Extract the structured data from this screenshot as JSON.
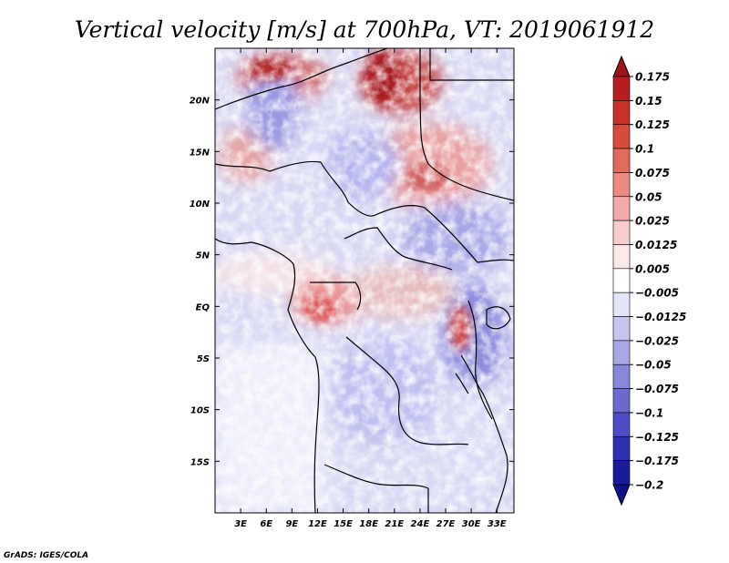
{
  "chart_data": {
    "type": "heatmap",
    "title": "Vertical velocity [m/s] at 700hPa, VT: 2019061912",
    "variable": "Vertical velocity",
    "units": "m/s",
    "level": "700hPa",
    "valid_time": "2019061912",
    "xlim": [
      0,
      35
    ],
    "ylim": [
      -20,
      25
    ],
    "x_ticks": [
      {
        "value": 3,
        "label": "3E"
      },
      {
        "value": 6,
        "label": "6E"
      },
      {
        "value": 9,
        "label": "9E"
      },
      {
        "value": 12,
        "label": "12E"
      },
      {
        "value": 15,
        "label": "15E"
      },
      {
        "value": 18,
        "label": "18E"
      },
      {
        "value": 21,
        "label": "21E"
      },
      {
        "value": 24,
        "label": "24E"
      },
      {
        "value": 27,
        "label": "27E"
      },
      {
        "value": 30,
        "label": "30E"
      },
      {
        "value": 33,
        "label": "33E"
      }
    ],
    "y_ticks": [
      {
        "value": 20,
        "label": "20N"
      },
      {
        "value": 15,
        "label": "15N"
      },
      {
        "value": 10,
        "label": "10N"
      },
      {
        "value": 5,
        "label": "5N"
      },
      {
        "value": 0,
        "label": "EQ"
      },
      {
        "value": -5,
        "label": "5S"
      },
      {
        "value": -10,
        "label": "10S"
      },
      {
        "value": -15,
        "label": "15S"
      }
    ],
    "colorbar": {
      "levels": [
        "0.175",
        "0.15",
        "0.125",
        "0.1",
        "0.075",
        "0.05",
        "0.025",
        "0.0125",
        "0.005",
        "−0.005",
        "−0.0125",
        "−0.025",
        "−0.05",
        "−0.075",
        "−0.1",
        "−0.125",
        "−0.175",
        "−0.2"
      ],
      "colors": [
        "#a01419",
        "#b41e1e",
        "#c8302a",
        "#d84a3c",
        "#e26a5a",
        "#ea8a80",
        "#f2aaa8",
        "#f8cccc",
        "#fde8e8",
        "#ffffff",
        "#e4e4f8",
        "#c6c6f0",
        "#a8a8e6",
        "#8888da",
        "#6a6ad0",
        "#4c4cc4",
        "#3030b2",
        "#1a1aa0",
        "#10108a"
      ]
    },
    "credit": "GrADS: IGES/COLA"
  }
}
